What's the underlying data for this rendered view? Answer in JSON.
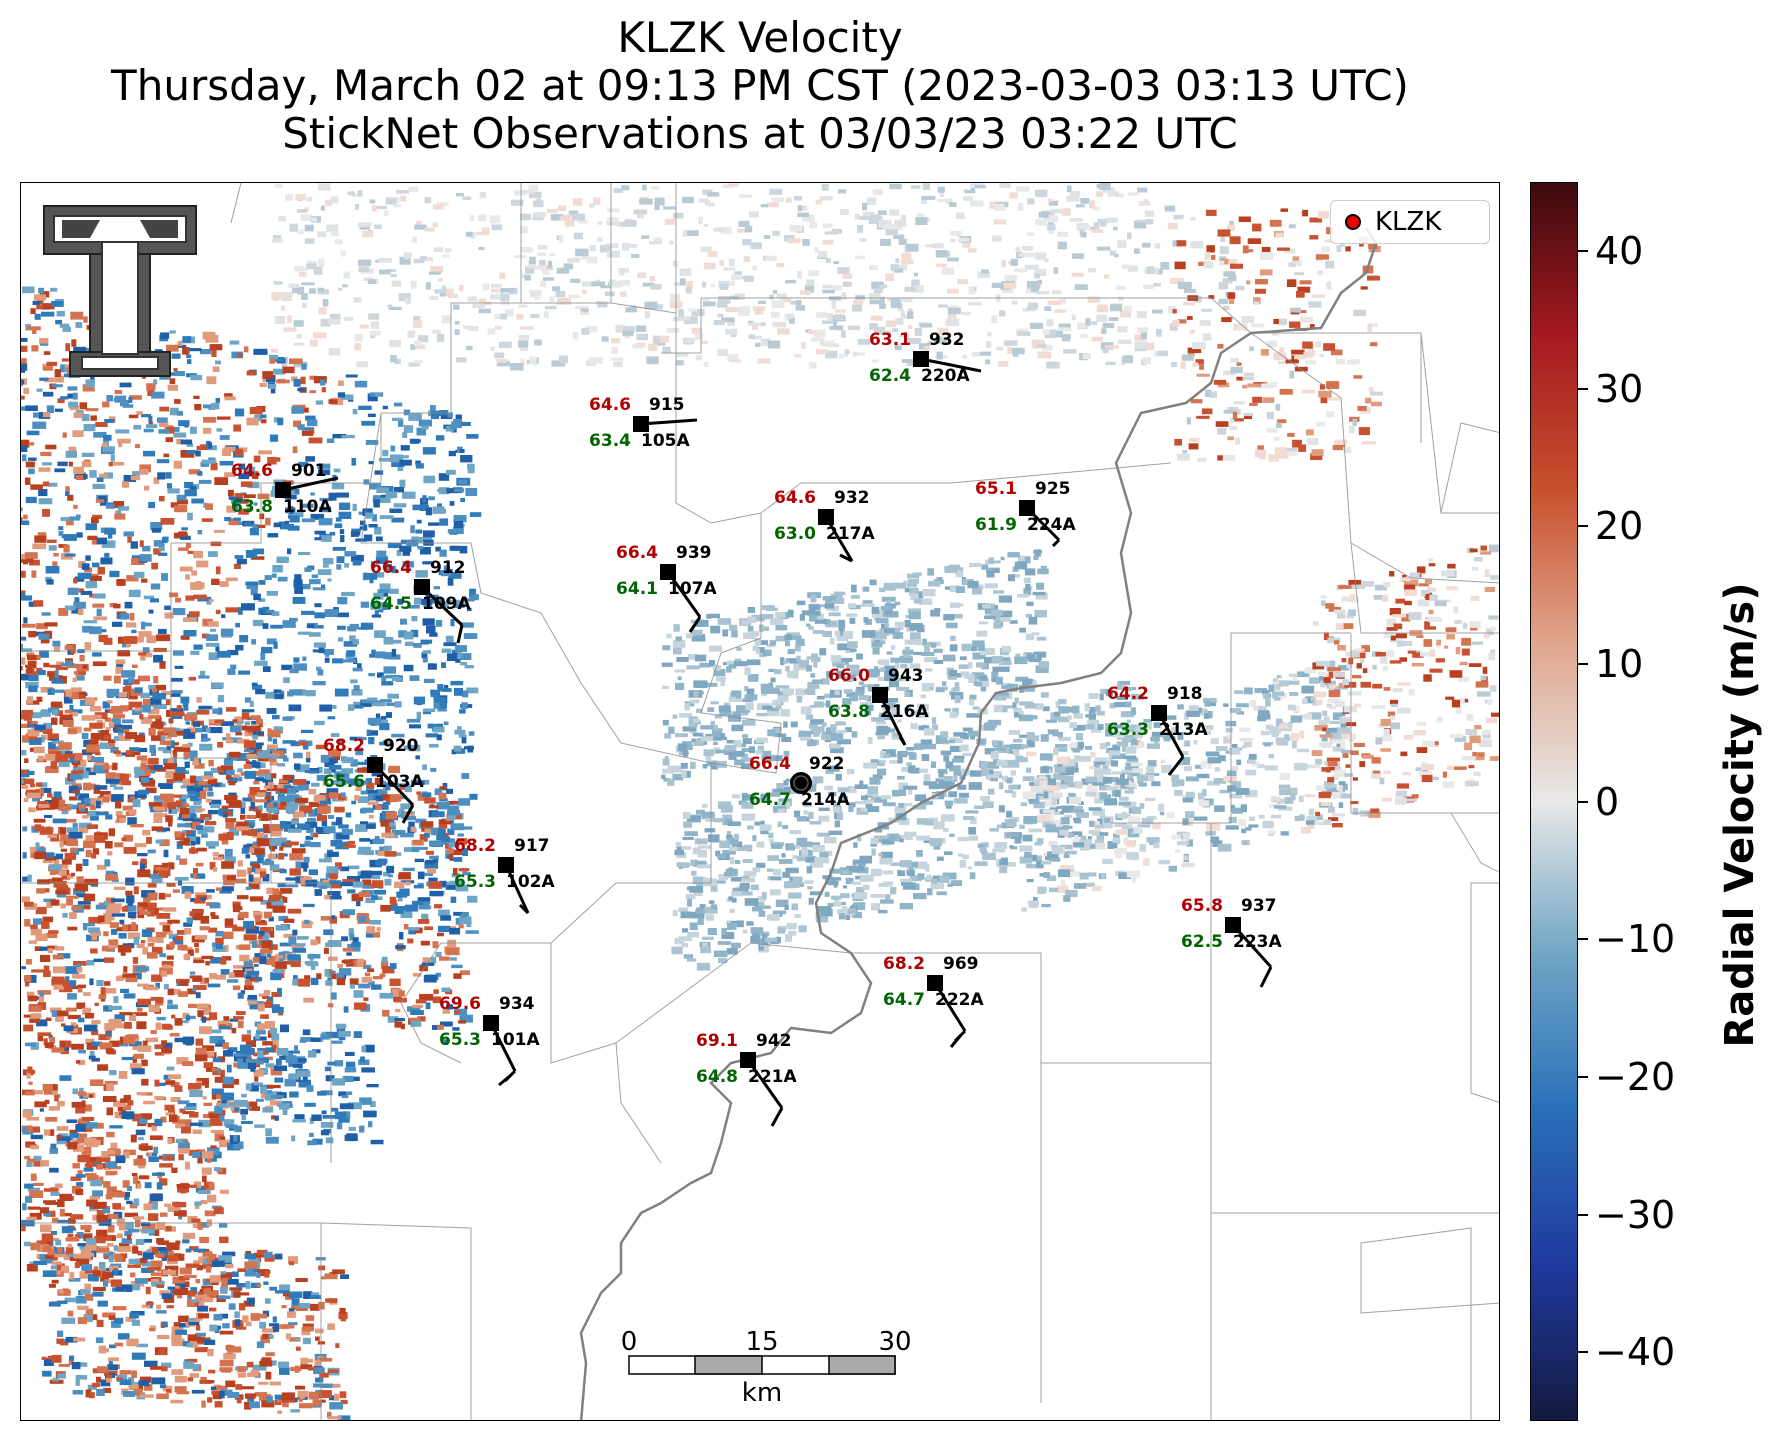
{
  "title": {
    "line1": "KLZK Velocity",
    "line2": "Thursday, March 02 at 09:13 PM CST (2023-03-03 03:13 UTC)",
    "line3": "StickNet Observations at 03/03/23 03:22 UTC"
  },
  "legend": {
    "label": "KLZK",
    "marker_color": "#ee0000"
  },
  "logo": {
    "name": "Texas Tech Double T"
  },
  "colorbar": {
    "label": "Radial Velocity (m/s)",
    "ticks": [
      "40",
      "30",
      "20",
      "10",
      "0",
      "−10",
      "−20",
      "−30",
      "−40"
    ],
    "range": [
      -45,
      45
    ],
    "colors": [
      "#141a40",
      "#1f3a9e",
      "#2a6fb8",
      "#6fa5c4",
      "#e8e8e8",
      "#e0a78f",
      "#c8522f",
      "#a51a20",
      "#3d0a0e"
    ]
  },
  "scalebar": {
    "ticks": [
      "0",
      "15",
      "30"
    ],
    "unit": "km"
  },
  "stations": [
    {
      "id": "220A",
      "temp": "63.1",
      "dew": "62.4",
      "press": "932",
      "wind": "barb-1"
    },
    {
      "id": "105A",
      "temp": "64.6",
      "dew": "63.4",
      "press": "915",
      "wind": "barb-2"
    },
    {
      "id": "110A",
      "temp": "64.6",
      "dew": "63.8",
      "press": "901",
      "wind": "barb-3"
    },
    {
      "id": "217A",
      "temp": "64.6",
      "dew": "63.0",
      "press": "932",
      "wind": "barb-4"
    },
    {
      "id": "224A",
      "temp": "65.1",
      "dew": "61.9",
      "press": "925",
      "wind": "barb-5"
    },
    {
      "id": "107A",
      "temp": "66.4",
      "dew": "64.1",
      "press": "939",
      "wind": "barb-6"
    },
    {
      "id": "109A",
      "temp": "66.4",
      "dew": "64.5",
      "press": "912",
      "wind": "barb-7"
    },
    {
      "id": "216A",
      "temp": "66.0",
      "dew": "63.8",
      "press": "943",
      "wind": "barb-8"
    },
    {
      "id": "213A",
      "temp": "64.2",
      "dew": "63.3",
      "press": "918",
      "wind": "barb-9"
    },
    {
      "id": "103A",
      "temp": "68.2",
      "dew": "65.6",
      "press": "920",
      "wind": "barb-10"
    },
    {
      "id": "214A",
      "temp": "66.4",
      "dew": "64.7",
      "press": "922",
      "wind": "calm"
    },
    {
      "id": "102A",
      "temp": "68.2",
      "dew": "65.3",
      "press": "917",
      "wind": "barb-11"
    },
    {
      "id": "223A",
      "temp": "65.8",
      "dew": "62.5",
      "press": "937",
      "wind": "barb-12"
    },
    {
      "id": "222A",
      "temp": "68.2",
      "dew": "64.7",
      "press": "969",
      "wind": "barb-13"
    },
    {
      "id": "101A",
      "temp": "69.6",
      "dew": "65.3",
      "press": "934",
      "wind": "barb-14"
    },
    {
      "id": "221A",
      "temp": "69.1",
      "dew": "64.8",
      "press": "942",
      "wind": "barb-15"
    }
  ]
}
